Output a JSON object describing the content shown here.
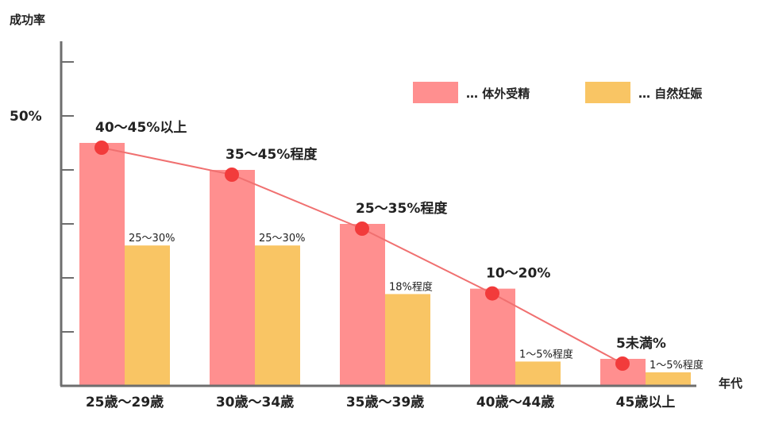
{
  "chart_data": {
    "type": "bar",
    "ylabel": "成功率",
    "xlabel": "年代",
    "y_tick_label": "50%",
    "y_tick_value": 50,
    "ylim": [
      0,
      58
    ],
    "categories": [
      "25歳〜29歳",
      "30歳〜34歳",
      "35歳〜39歳",
      "40歳〜44歳",
      "45歳以上"
    ],
    "series": [
      {
        "name": "体外受精",
        "color": "#FF8F8F",
        "values": [
          45,
          40,
          30,
          18,
          5
        ],
        "labels": [
          "40〜45%以上",
          "35〜45%程度",
          "25〜35%程度",
          "10〜20%",
          "5未満%"
        ]
      },
      {
        "name": "自然妊娠",
        "color": "#F9C564",
        "values": [
          26,
          26,
          17,
          4.5,
          2.5
        ],
        "labels": [
          "25〜30%",
          "25〜30%",
          "18%程度",
          "1〜5%程度",
          "1〜5%程度"
        ]
      }
    ],
    "trend_line": {
      "series": "体外受精",
      "line_color": "#F07070",
      "marker_color": "#F23B3B"
    },
    "legend": {
      "placement": "top-right",
      "prefix": "…",
      "entries": [
        "体外受精",
        "自然妊娠"
      ]
    },
    "axis_color": "#6E6E6E"
  }
}
